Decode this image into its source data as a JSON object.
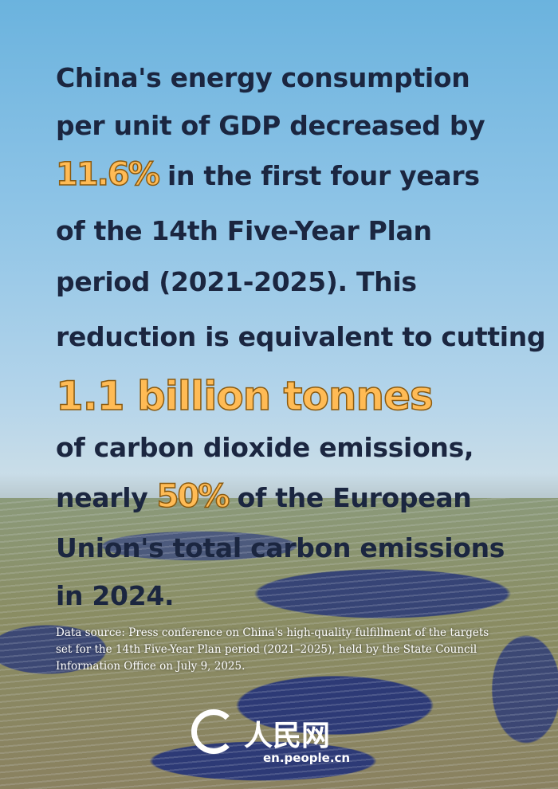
{
  "headline": {
    "lines": [
      {
        "text": "China's energy consumption"
      },
      {
        "text": "per unit of GDP decreased by"
      },
      {
        "highlight": "11.6%",
        "text": " in the first four years"
      },
      {
        "text": "of the 14th Five-Year Plan"
      },
      {
        "text": "period (2021-2025). This"
      },
      {
        "text": "reduction is equivalent to cutting"
      },
      {
        "highlight": "1.1 billion tonnes"
      },
      {
        "text": "of carbon dioxide emissions,"
      },
      {
        "pre": "nearly ",
        "highlight": "50%",
        "text": " of the European"
      },
      {
        "text": "Union's total carbon emissions"
      },
      {
        "text": "in 2024."
      }
    ]
  },
  "source": "Data source: Press conference on China's high-quality fulfillment of the targets set for the 14th Five-Year Plan period (2021–2025), held by the State Council Information Office on July 9, 2025.",
  "logo": {
    "chinese": "人民网",
    "url": "en.people.cn"
  },
  "colors": {
    "text": "#1b2640",
    "highlight": "#ffbb55",
    "highlight_outline": "#8a5a10"
  }
}
